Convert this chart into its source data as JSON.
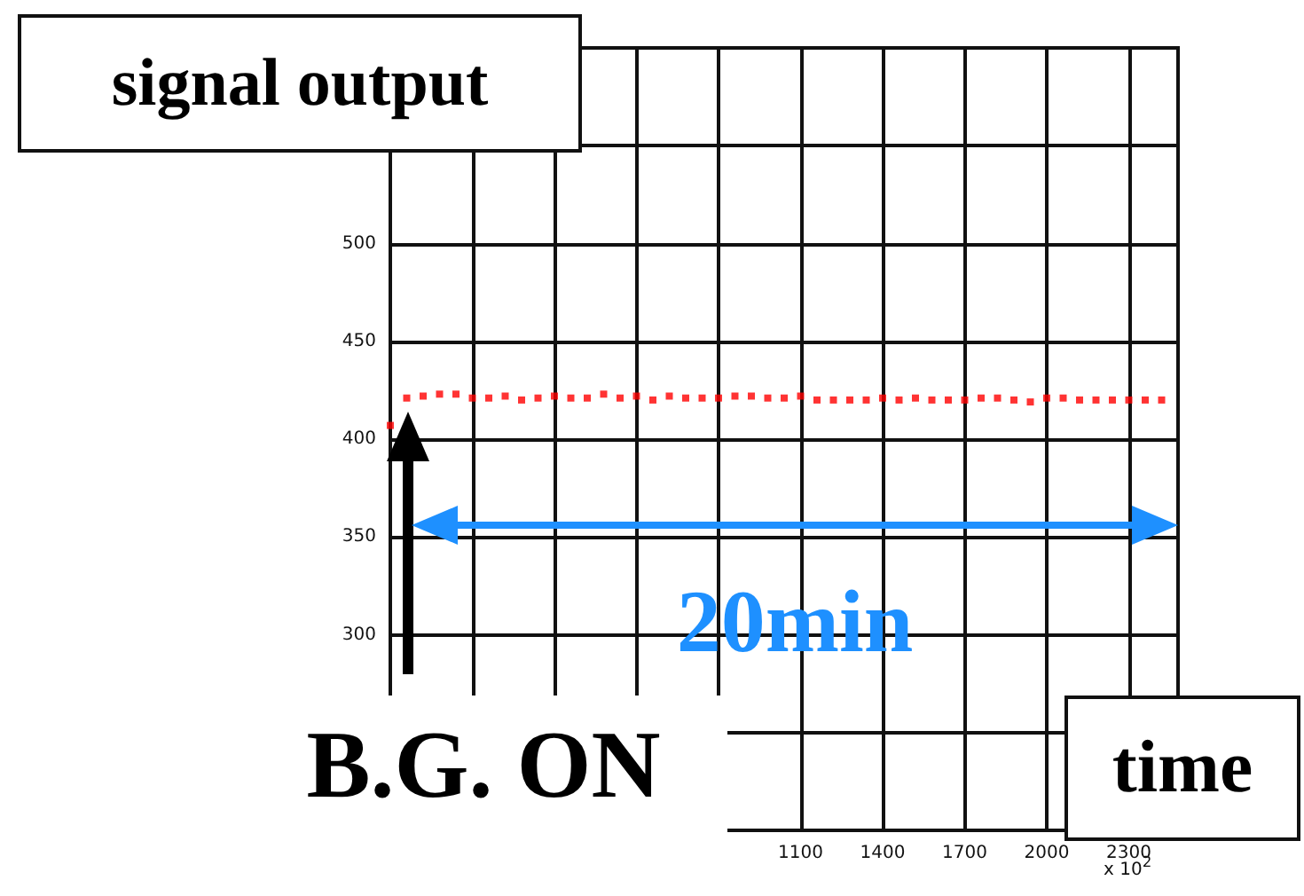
{
  "chart_data": {
    "type": "scatter",
    "xlabel": "time",
    "ylabel": "signal output",
    "annotations": [
      "B.G. ON",
      "20min",
      "x 10$^{2}$"
    ],
    "x": [
      -400,
      -340,
      -280,
      -220,
      -160,
      -100,
      -40,
      20,
      80,
      140,
      200,
      260,
      320,
      380,
      440,
      500,
      560,
      620,
      680,
      740,
      800,
      860,
      920,
      980,
      1040,
      1100,
      1160,
      1220,
      1280,
      1340,
      1400,
      1460,
      1520,
      1580,
      1640,
      1700,
      1760,
      1820,
      1880,
      1940,
      2000,
      2060,
      2120,
      2180,
      2240,
      2300,
      2360,
      2420
    ],
    "series": [
      {
        "color": "#ff0000",
        "values": [
          407,
          421,
          422,
          423,
          423,
          421,
          421,
          422,
          420,
          421,
          422,
          421,
          421,
          423,
          421,
          422,
          420,
          422,
          421,
          421,
          421,
          422,
          422,
          421,
          421,
          422,
          420,
          420,
          420,
          420,
          421,
          420,
          421,
          420,
          420,
          420,
          421,
          421,
          420,
          419,
          421,
          421,
          420,
          420,
          420,
          420,
          420,
          420
        ]
      }
    ],
    "xlim": [
      -400,
      2480
    ],
    "xticks": [
      {
        "value": -400,
        "label": null
      },
      {
        "value": -100,
        "label": null
      },
      {
        "value": 200,
        "label": null
      },
      {
        "value": 500,
        "label": null
      },
      {
        "value": 800,
        "label": null
      },
      1100,
      1400,
      1700,
      2000,
      2300
    ],
    "ylim": [
      200,
      600
    ],
    "yticks": [
      {
        "value": 200,
        "label": null
      },
      {
        "value": 250,
        "label": null
      },
      300,
      350,
      400,
      450,
      500,
      {
        "value": 550,
        "label": null
      },
      {
        "value": 600,
        "label": null
      }
    ],
    "grid": true,
    "marker": "square"
  }
}
